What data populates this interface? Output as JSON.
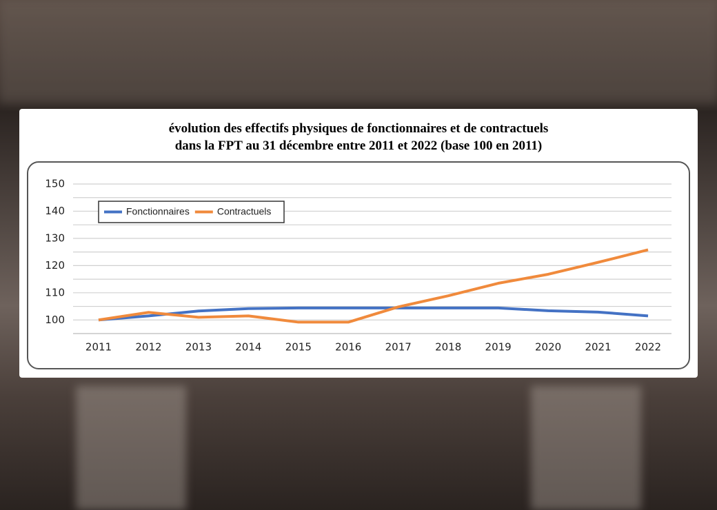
{
  "chart_data": {
    "type": "line",
    "title_lines": [
      "évolution des effectifs physiques de fonctionnaires et de contractuels",
      "dans la FPT au 31 décembre entre 2011 et 2022 (base 100 en 2011)"
    ],
    "categories": [
      "2011",
      "2012",
      "2013",
      "2014",
      "2015",
      "2016",
      "2017",
      "2018",
      "2019",
      "2020",
      "2021",
      "2022"
    ],
    "series": [
      {
        "name": "Fonctionnaires",
        "color": "#4472c4",
        "values": [
          100,
          101.5,
          103.3,
          104.2,
          104.4,
          104.4,
          104.4,
          104.4,
          104.4,
          103.4,
          102.9,
          101.5
        ]
      },
      {
        "name": "Contractuels",
        "color": "#f08a3c",
        "values": [
          100,
          102.8,
          101,
          101.5,
          99.2,
          99.2,
          104.8,
          108.9,
          113.5,
          116.8,
          121.2,
          125.8
        ]
      }
    ],
    "ylim": [
      95,
      150
    ],
    "yticks": [
      100,
      110,
      120,
      130,
      140,
      150
    ],
    "minor_grid": [
      105,
      115,
      125,
      135,
      145
    ],
    "grid": true,
    "legend": "top-left"
  }
}
